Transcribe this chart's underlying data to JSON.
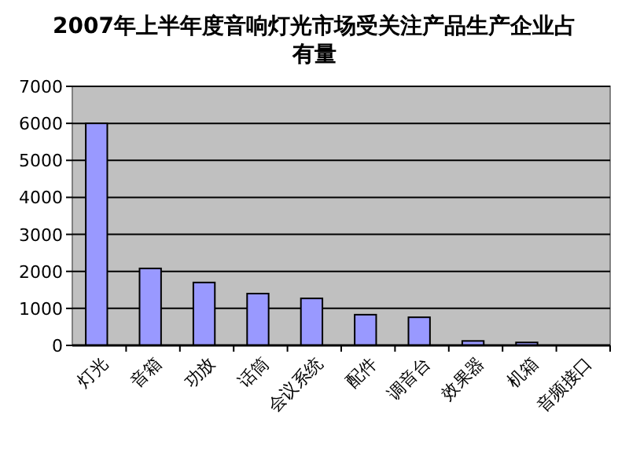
{
  "chart_data": {
    "type": "bar",
    "title": "2007年上半年度音响灯光市场受关注产品生产企业占有量",
    "categories": [
      "灯光",
      "音箱",
      "功放",
      "话筒",
      "会议系统",
      "配件",
      "调音台",
      "效果器",
      "机箱",
      "音频接口"
    ],
    "values": [
      6000,
      2080,
      1700,
      1400,
      1270,
      830,
      760,
      120,
      80,
      0
    ],
    "color": "#9999ff",
    "ylim": [
      0,
      7000
    ],
    "yticks": [
      0,
      1000,
      2000,
      3000,
      4000,
      5000,
      6000,
      7000
    ],
    "grid": "y"
  }
}
